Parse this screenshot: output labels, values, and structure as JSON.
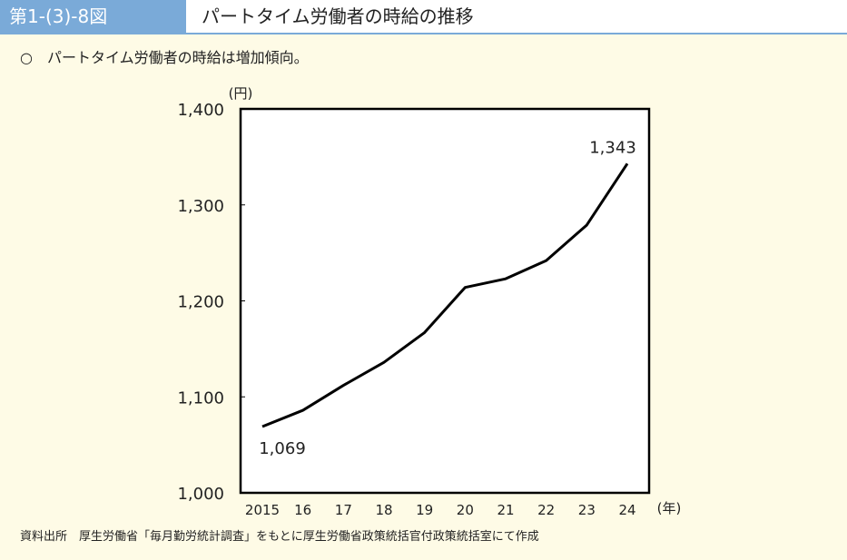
{
  "header": {
    "figure_number": "第1-(3)-8図",
    "title": "パートタイム労働者の時給の推移"
  },
  "summary": "○　パートタイム労働者の時給は増加傾向。",
  "source": "資料出所　厚生労働省「毎月勤労統計調査」をもとに厚生労働省政策統括官付政策統括室にて作成",
  "colors": {
    "accent": "#7aaad8",
    "background": "#fefbe6",
    "line": "#000000"
  },
  "chart_data": {
    "type": "line",
    "title": "",
    "ylabel": "(円)",
    "xlabel": "(年)",
    "ylim": [
      1000,
      1400
    ],
    "yticks": [
      "1,000",
      "1,100",
      "1,200",
      "1,300",
      "1,400"
    ],
    "categories": [
      "2015",
      "16",
      "17",
      "18",
      "19",
      "20",
      "21",
      "22",
      "23",
      "24"
    ],
    "values": [
      1069,
      1086,
      1112,
      1136,
      1167,
      1214,
      1223,
      1242,
      1279,
      1343
    ],
    "data_labels": {
      "first": "1,069",
      "last": "1,343"
    },
    "grid": false
  }
}
